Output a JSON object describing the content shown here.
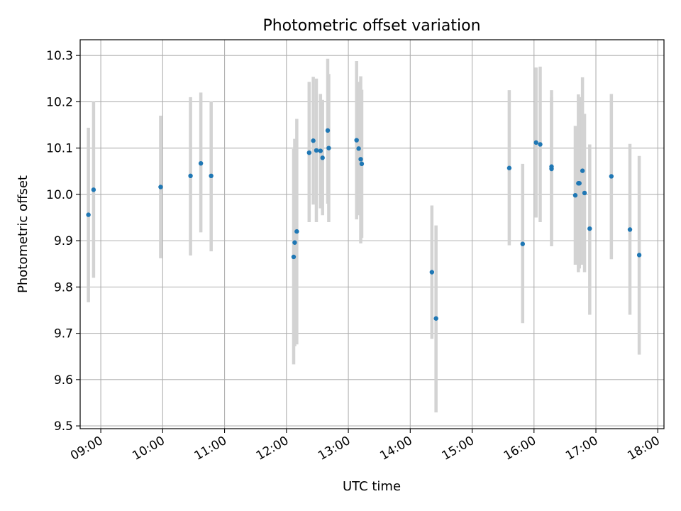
{
  "chart_data": {
    "type": "scatter",
    "title": "Photometric offset variation",
    "xlabel": "UTC time",
    "ylabel": "Photometric offset",
    "grid": true,
    "xlim": [
      "08:40",
      "18:06"
    ],
    "ylim": [
      9.494,
      10.334
    ],
    "x_ticks": [
      "09:00",
      "10:00",
      "11:00",
      "12:00",
      "13:00",
      "14:00",
      "15:00",
      "16:00",
      "17:00",
      "18:00"
    ],
    "y_ticks": [
      "9.5",
      "9.6",
      "9.7",
      "9.8",
      "9.9",
      "10.0",
      "10.1",
      "10.2",
      "10.3"
    ],
    "point_color": "#1f77b4",
    "errorbar_color": "#d3d3d3",
    "points": [
      {
        "time": "08:48",
        "y": 9.956,
        "lo": 9.767,
        "hi": 10.144
      },
      {
        "time": "08:53",
        "y": 10.01,
        "lo": 9.82,
        "hi": 10.2
      },
      {
        "time": "09:58",
        "y": 10.016,
        "lo": 9.862,
        "hi": 10.17
      },
      {
        "time": "10:27",
        "y": 10.04,
        "lo": 9.868,
        "hi": 10.21
      },
      {
        "time": "10:37",
        "y": 10.067,
        "lo": 9.918,
        "hi": 10.22
      },
      {
        "time": "10:47",
        "y": 10.04,
        "lo": 9.877,
        "hi": 10.201
      },
      {
        "time": "12:07",
        "y": 9.865,
        "lo": 9.633,
        "hi": 10.098
      },
      {
        "time": "12:08",
        "y": 9.896,
        "lo": 9.672,
        "hi": 10.12
      },
      {
        "time": "12:10",
        "y": 9.92,
        "lo": 9.676,
        "hi": 10.163
      },
      {
        "time": "12:22",
        "y": 10.09,
        "lo": 9.94,
        "hi": 10.243
      },
      {
        "time": "12:26",
        "y": 10.116,
        "lo": 9.978,
        "hi": 10.254
      },
      {
        "time": "12:29",
        "y": 10.095,
        "lo": 9.94,
        "hi": 10.25
      },
      {
        "time": "12:33",
        "y": 10.094,
        "lo": 9.97,
        "hi": 10.217
      },
      {
        "time": "12:35",
        "y": 10.079,
        "lo": 9.955,
        "hi": 10.204
      },
      {
        "time": "12:40",
        "y": 10.138,
        "lo": 9.98,
        "hi": 10.293
      },
      {
        "time": "12:41",
        "y": 10.1,
        "lo": 9.94,
        "hi": 10.26
      },
      {
        "time": "13:08",
        "y": 10.117,
        "lo": 9.946,
        "hi": 10.288
      },
      {
        "time": "13:10",
        "y": 10.099,
        "lo": 9.955,
        "hi": 10.243
      },
      {
        "time": "13:12",
        "y": 10.076,
        "lo": 9.894,
        "hi": 10.255
      },
      {
        "time": "13:13",
        "y": 10.066,
        "lo": 9.906,
        "hi": 10.226
      },
      {
        "time": "14:21",
        "y": 9.832,
        "lo": 9.688,
        "hi": 9.976
      },
      {
        "time": "14:25",
        "y": 9.732,
        "lo": 9.529,
        "hi": 9.933
      },
      {
        "time": "15:36",
        "y": 10.057,
        "lo": 9.89,
        "hi": 10.225
      },
      {
        "time": "15:49",
        "y": 9.893,
        "lo": 9.722,
        "hi": 10.066
      },
      {
        "time": "16:02",
        "y": 10.112,
        "lo": 9.95,
        "hi": 10.274
      },
      {
        "time": "16:06",
        "y": 10.108,
        "lo": 9.94,
        "hi": 10.276
      },
      {
        "time": "16:17",
        "y": 10.06,
        "lo": 9.888,
        "hi": 10.225
      },
      {
        "time": "16:17",
        "y": 10.055,
        "lo": 9.9,
        "hi": 10.21
      },
      {
        "time": "16:40",
        "y": 9.998,
        "lo": 9.848,
        "hi": 10.148
      },
      {
        "time": "16:43",
        "y": 10.024,
        "lo": 9.832,
        "hi": 10.216
      },
      {
        "time": "16:44",
        "y": 10.024,
        "lo": 9.84,
        "hi": 10.21
      },
      {
        "time": "16:47",
        "y": 10.051,
        "lo": 9.848,
        "hi": 10.253
      },
      {
        "time": "16:49",
        "y": 10.003,
        "lo": 9.832,
        "hi": 10.174
      },
      {
        "time": "16:54",
        "y": 9.926,
        "lo": 9.74,
        "hi": 10.108
      },
      {
        "time": "17:15",
        "y": 10.039,
        "lo": 9.86,
        "hi": 10.217
      },
      {
        "time": "17:33",
        "y": 9.924,
        "lo": 9.74,
        "hi": 10.109
      },
      {
        "time": "17:42",
        "y": 9.869,
        "lo": 9.654,
        "hi": 10.083
      }
    ]
  }
}
